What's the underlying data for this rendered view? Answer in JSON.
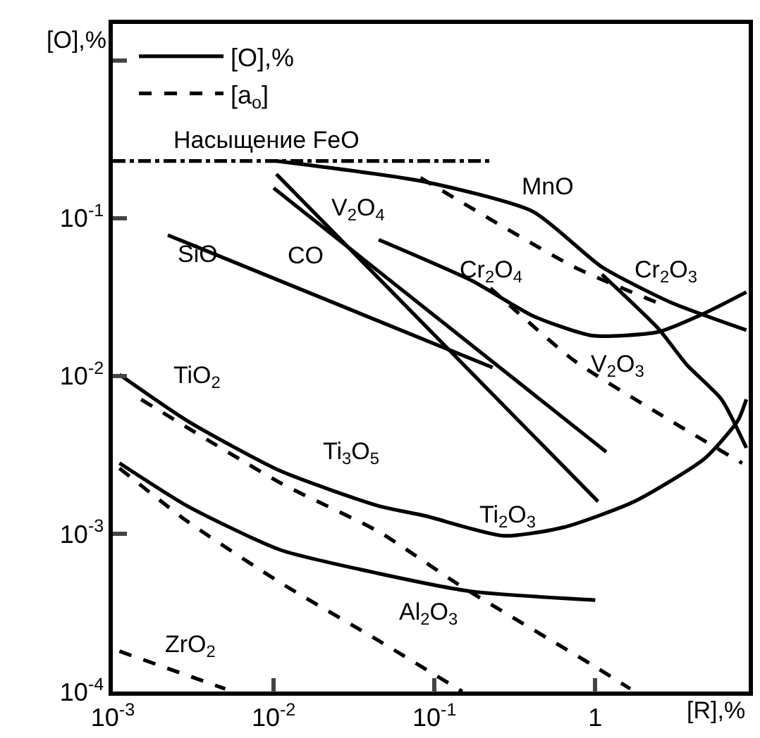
{
  "chart_data": {
    "type": "line",
    "xlabel": "[R],%",
    "ylabel": "[O],%",
    "log": "xy",
    "grid": false,
    "legend": "top left",
    "marker": "none",
    "xlim": [
      0.001,
      9
    ],
    "xticks": [
      {
        "value": 0.001,
        "label": "10$^{-3}$"
      },
      {
        "value": 0.01,
        "label": "10$^{-2}$"
      },
      {
        "value": 0.1,
        "label": "10$^{-1}$"
      },
      1
    ],
    "ylim": [
      0.0001,
      1.7
    ],
    "yticks": [
      {
        "value": 0.0001,
        "label": "10$^{-4}$"
      },
      {
        "value": 0.001,
        "label": "10$^{-3}$"
      },
      {
        "value": 0.01,
        "label": "10$^{-2}$"
      },
      {
        "value": 0.1,
        "label": "10$^{-1}$"
      },
      {
        "value": 1,
        "label": null
      }
    ],
    "series": [
      {
        "name": "[O],%",
        "color": "#000000",
        "line_style": "solid",
        "x": [
          0.0104,
          0.087,
          0.41,
          1.1,
          3.0,
          8.7
        ],
        "values": [
          0.23,
          0.17,
          0.11,
          0.049,
          0.029,
          0.0195
        ]
      },
      {
        "color": "#000000",
        "line_style": "solid",
        "x": [
          0.0104,
          1.04
        ],
        "values": [
          0.19,
          0.0016
        ]
      },
      {
        "color": "#000000",
        "line_style": "solid",
        "x": [
          0.01,
          1.17
        ],
        "values": [
          0.155,
          0.0033
        ]
      },
      {
        "color": "#000000",
        "line_style": "solid",
        "x": [
          0.045,
          0.172,
          0.41,
          0.96,
          2.46,
          4.8,
          8.7
        ],
        "values": [
          0.073,
          0.04,
          0.024,
          0.018,
          0.019,
          0.025,
          0.034
        ]
      },
      {
        "color": "#000000",
        "line_style": "solid",
        "x": [
          1.1,
          2.46,
          3.7,
          6.1,
          8.7
        ],
        "values": [
          0.044,
          0.02,
          0.0118,
          0.0071,
          0.0035
        ]
      },
      {
        "color": "#000000",
        "line_style": "solid",
        "x": [
          0.0022,
          0.23
        ],
        "values": [
          0.078,
          0.0113
        ]
      },
      {
        "color": "#000000",
        "line_style": "solid",
        "x": [
          0.0011,
          0.0029,
          0.011,
          0.045,
          0.087,
          0.27,
          0.64,
          1.75,
          4.8,
          7.7,
          8.7
        ],
        "values": [
          0.0102,
          0.0052,
          0.0025,
          0.0015,
          0.0013,
          0.00097,
          0.0011,
          0.0016,
          0.003,
          0.0052,
          0.0071
        ]
      },
      {
        "color": "#000000",
        "line_style": "solid",
        "x": [
          0.0011,
          0.0029,
          0.011,
          0.045,
          0.172,
          1
        ],
        "values": [
          0.0028,
          0.0015,
          0.00079,
          0.00056,
          0.00043,
          0.00038
        ]
      },
      {
        "name": "[a$_{o}$]",
        "color": "#000000",
        "line_style": "dashed",
        "x": [
          0.082,
          0.74,
          2.46
        ],
        "values": [
          0.18,
          0.049,
          0.029
        ]
      },
      {
        "color": "#000000",
        "line_style": "dashed",
        "x": [
          0.223,
          0.74,
          2.46,
          8.2
        ],
        "values": [
          0.036,
          0.0125,
          0.0058,
          0.0028
        ]
      },
      {
        "color": "#000000",
        "line_style": "dashed",
        "x": [
          0.0015,
          0.011,
          0.045,
          0.149,
          1.04,
          1.65
        ],
        "values": [
          0.0071,
          0.0021,
          0.00103,
          0.00046,
          0.00014,
          0.000104
        ]
      },
      {
        "color": "#000000",
        "line_style": "dashed",
        "x": [
          0.0011,
          0.0029,
          0.011,
          0.045,
          0.149
        ],
        "values": [
          0.0026,
          0.0012,
          0.00049,
          0.00021,
          0.0001
        ]
      },
      {
        "color": "#000000",
        "line_style": "dashed",
        "x": [
          0.0011,
          0.005
        ],
        "values": [
          0.00018,
          0.000104
        ]
      },
      {
        "color": "#000000",
        "line_style": "dashdot",
        "x": [
          0.001,
          0.23
        ],
        "values": [
          0.23,
          0.23
        ]
      }
    ],
    "annotations": [
      "Насыщение FeO",
      "SiO",
      "CO",
      "V$_{2}$O$_{4}$",
      "MnO",
      "Cr$_{2}$O$_{4}$",
      "Cr$_{2}$O$_{3}$",
      "V$_{2}$O$_{3}$",
      "TiO$_{2}$",
      "Ti$_{3}$O$_{5}$",
      "Ti$_{2}$O$_{3}$",
      "Al$_{2}$O$_{3}$",
      "ZrO$_{2}$"
    ]
  }
}
